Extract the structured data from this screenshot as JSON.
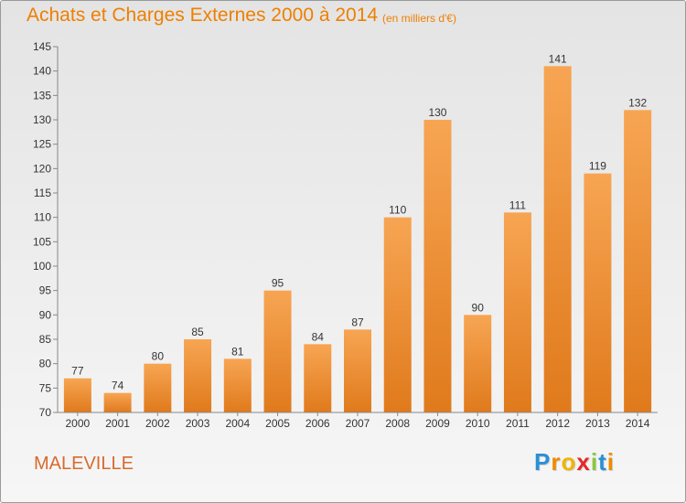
{
  "chart_data": {
    "type": "bar",
    "title": "Achats et Charges Externes 2000 à 2014",
    "subtitle": "(en milliers d'€)",
    "categories": [
      "2000",
      "2001",
      "2002",
      "2003",
      "2004",
      "2005",
      "2006",
      "2007",
      "2008",
      "2009",
      "2010",
      "2011",
      "2012",
      "2013",
      "2014"
    ],
    "values": [
      77,
      74,
      80,
      85,
      81,
      95,
      84,
      87,
      110,
      130,
      90,
      111,
      141,
      119,
      132
    ],
    "ylim": [
      70,
      145
    ],
    "yticks": [
      70,
      75,
      80,
      85,
      90,
      95,
      100,
      105,
      110,
      115,
      120,
      125,
      130,
      135,
      140,
      145
    ],
    "grid": false,
    "bar_color_top": "#f7a553",
    "bar_color_bottom": "#e07a1c",
    "title_color": "#ee7f00"
  },
  "commune_label": "MALEVILLE",
  "logo": {
    "letters": [
      "P",
      "r",
      "o",
      "x",
      "i",
      "t",
      "i"
    ],
    "colors": [
      "#2a8fd6",
      "#f08a00",
      "#f0b400",
      "#e8262a",
      "#8cc63f",
      "#2a8fd6",
      "#f08a00"
    ]
  }
}
